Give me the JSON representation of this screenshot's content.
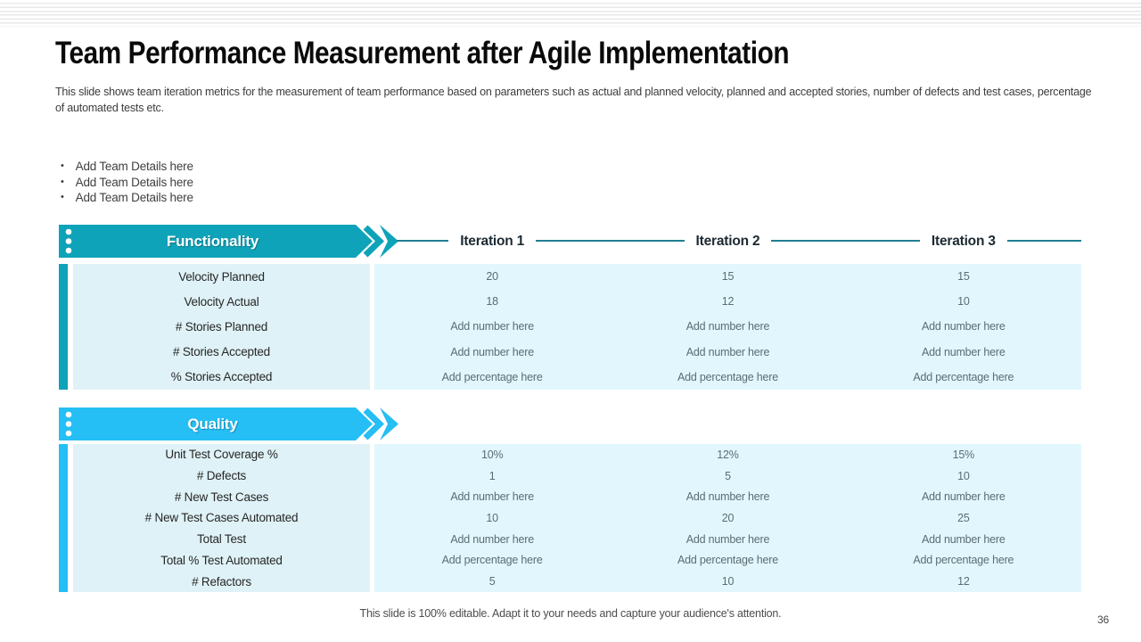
{
  "slide": {
    "title": "Team Performance Measurement after Agile Implementation",
    "subtitle": "This slide shows team iteration metrics for the measurement of team performance based on parameters such as actual and planned velocity, planned and accepted stories, number of defects and test cases, percentage of automated tests etc.",
    "bullets": [
      "Add Team Details here",
      "Add Team Details here",
      "Add Team Details here"
    ],
    "footer": "This slide is 100% editable. Adapt it to your needs and capture your audience's attention.",
    "page_number": "36"
  },
  "colors": {
    "teal": "#0FA3B9",
    "sky": "#25BEF5",
    "line": "#1F7F93",
    "label_bg": "#DFF2F7",
    "value_bg": "#E1F7FD"
  },
  "iterations": [
    "Iteration 1",
    "Iteration 2",
    "Iteration 3"
  ],
  "functionality": {
    "heading": "Functionality",
    "rows": [
      {
        "label": "Velocity Planned",
        "values": [
          "20",
          "15",
          "15"
        ]
      },
      {
        "label": "Velocity Actual",
        "values": [
          "18",
          "12",
          "10"
        ]
      },
      {
        "label": "# Stories Planned",
        "values": [
          "Add number here",
          "Add number here",
          "Add number here"
        ]
      },
      {
        "label": "# Stories Accepted",
        "values": [
          "Add number here",
          "Add number here",
          "Add number here"
        ]
      },
      {
        "label": "% Stories Accepted",
        "values": [
          "Add percentage here",
          "Add percentage here",
          "Add percentage here"
        ]
      }
    ]
  },
  "quality": {
    "heading": "Quality",
    "rows": [
      {
        "label": "Unit Test Coverage %",
        "values": [
          "10%",
          "12%",
          "15%"
        ]
      },
      {
        "label": "# Defects",
        "values": [
          "1",
          "5",
          "10"
        ]
      },
      {
        "label": "# New Test Cases",
        "values": [
          "Add number here",
          "Add number here",
          "Add number here"
        ]
      },
      {
        "label": "# New Test Cases Automated",
        "values": [
          "10",
          "20",
          "25"
        ]
      },
      {
        "label": "Total Test",
        "values": [
          "Add number here",
          "Add number here",
          "Add number here"
        ]
      },
      {
        "label": "Total % Test Automated",
        "values": [
          "Add percentage here",
          "Add percentage here",
          "Add percentage here"
        ]
      },
      {
        "label": "# Refactors",
        "values": [
          "5",
          "10",
          "12"
        ]
      }
    ]
  }
}
